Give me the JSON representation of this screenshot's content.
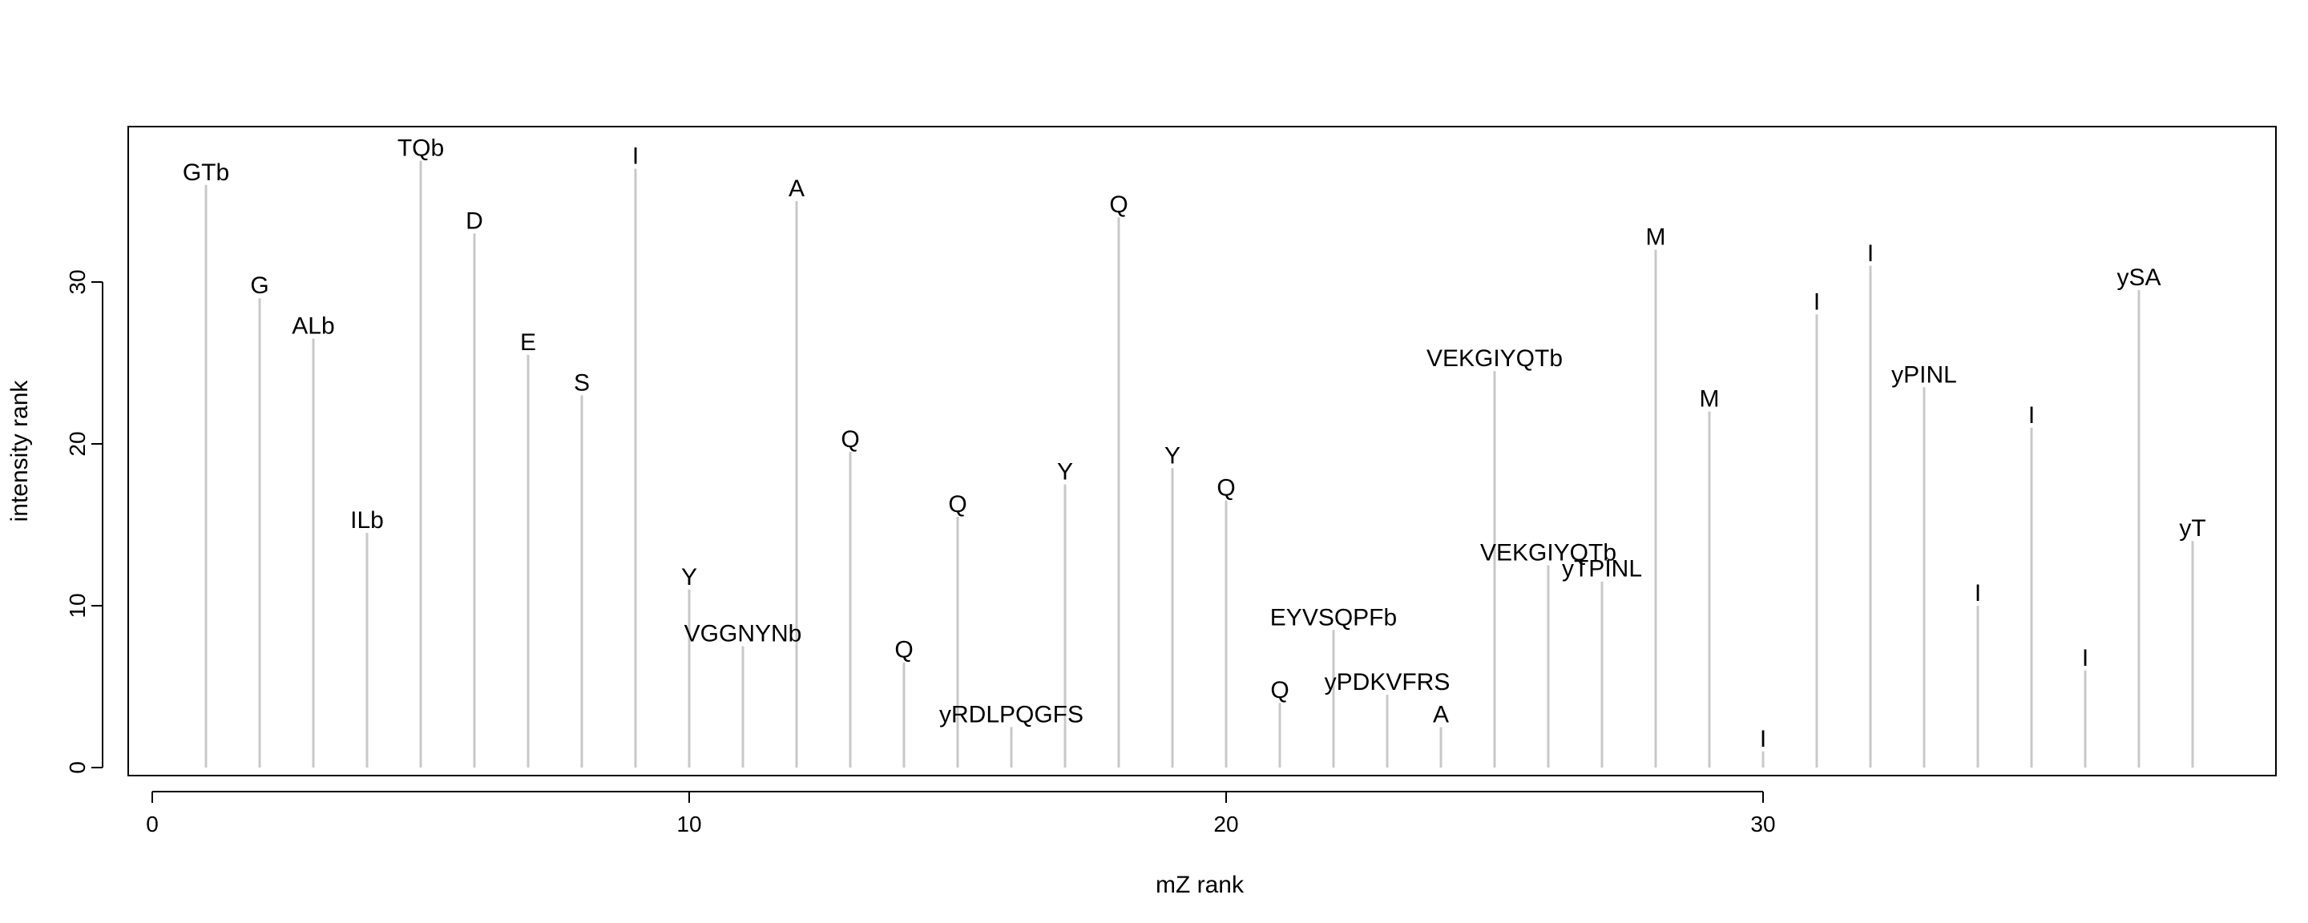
{
  "chart_data": {
    "type": "bar",
    "xlabel": "mZ rank",
    "ylabel": "intensity rank",
    "xlim": [
      0,
      38
    ],
    "ylim": [
      0,
      38
    ],
    "xticks": [
      "0",
      "10",
      "20",
      "30"
    ],
    "yticks": [
      "0",
      "10",
      "20",
      "30"
    ],
    "grid": false,
    "colors": {
      "stem": "#c8c8c8",
      "axis": "#000000",
      "text": "#000000"
    },
    "points": [
      {
        "x": 1,
        "y": 36,
        "label": "GTb"
      },
      {
        "x": 2,
        "y": 29,
        "label": "G"
      },
      {
        "x": 3,
        "y": 26.5,
        "label": "ALb"
      },
      {
        "x": 4,
        "y": 14.5,
        "label": "ILb"
      },
      {
        "x": 5,
        "y": 37.5,
        "label": "TQb"
      },
      {
        "x": 6,
        "y": 33,
        "label": "D"
      },
      {
        "x": 7,
        "y": 25.5,
        "label": "E"
      },
      {
        "x": 8,
        "y": 23,
        "label": "S"
      },
      {
        "x": 9,
        "y": 37,
        "label": "I"
      },
      {
        "x": 10,
        "y": 11,
        "label": "Y"
      },
      {
        "x": 11,
        "y": 7.5,
        "label": "VGGNYNb"
      },
      {
        "x": 12,
        "y": 35,
        "label": "A"
      },
      {
        "x": 13,
        "y": 19.5,
        "label": "Q"
      },
      {
        "x": 14,
        "y": 6.5,
        "label": "Q"
      },
      {
        "x": 15,
        "y": 15.5,
        "label": "Q"
      },
      {
        "x": 16,
        "y": 2.5,
        "label": "yRDLPQGFS"
      },
      {
        "x": 17,
        "y": 17.5,
        "label": "Y"
      },
      {
        "x": 18,
        "y": 34,
        "label": "Q"
      },
      {
        "x": 19,
        "y": 18.5,
        "label": "Y"
      },
      {
        "x": 20,
        "y": 16.5,
        "label": "Q"
      },
      {
        "x": 21,
        "y": 4,
        "label": "Q"
      },
      {
        "x": 22,
        "y": 8.5,
        "label": "EYVSQPFb"
      },
      {
        "x": 23,
        "y": 4.5,
        "label": "yPDKVFRS"
      },
      {
        "x": 24,
        "y": 2.5,
        "label": "A"
      },
      {
        "x": 25,
        "y": 24.5,
        "label": "VEKGIYQTb"
      },
      {
        "x": 26,
        "y": 12.5,
        "label": "VEKGIYQTb"
      },
      {
        "x": 27,
        "y": 11.5,
        "label": "yTPINL"
      },
      {
        "x": 28,
        "y": 32,
        "label": "M"
      },
      {
        "x": 29,
        "y": 22,
        "label": "M"
      },
      {
        "x": 30,
        "y": 1,
        "label": "I"
      },
      {
        "x": 31,
        "y": 28,
        "label": "I"
      },
      {
        "x": 32,
        "y": 31,
        "label": "I"
      },
      {
        "x": 33,
        "y": 23.5,
        "label": "yPINL"
      },
      {
        "x": 34,
        "y": 10,
        "label": "I"
      },
      {
        "x": 35,
        "y": 21,
        "label": "I"
      },
      {
        "x": 36,
        "y": 6,
        "label": "I"
      },
      {
        "x": 37,
        "y": 29.5,
        "label": "ySA"
      },
      {
        "x": 38,
        "y": 14,
        "label": "yT"
      }
    ]
  }
}
